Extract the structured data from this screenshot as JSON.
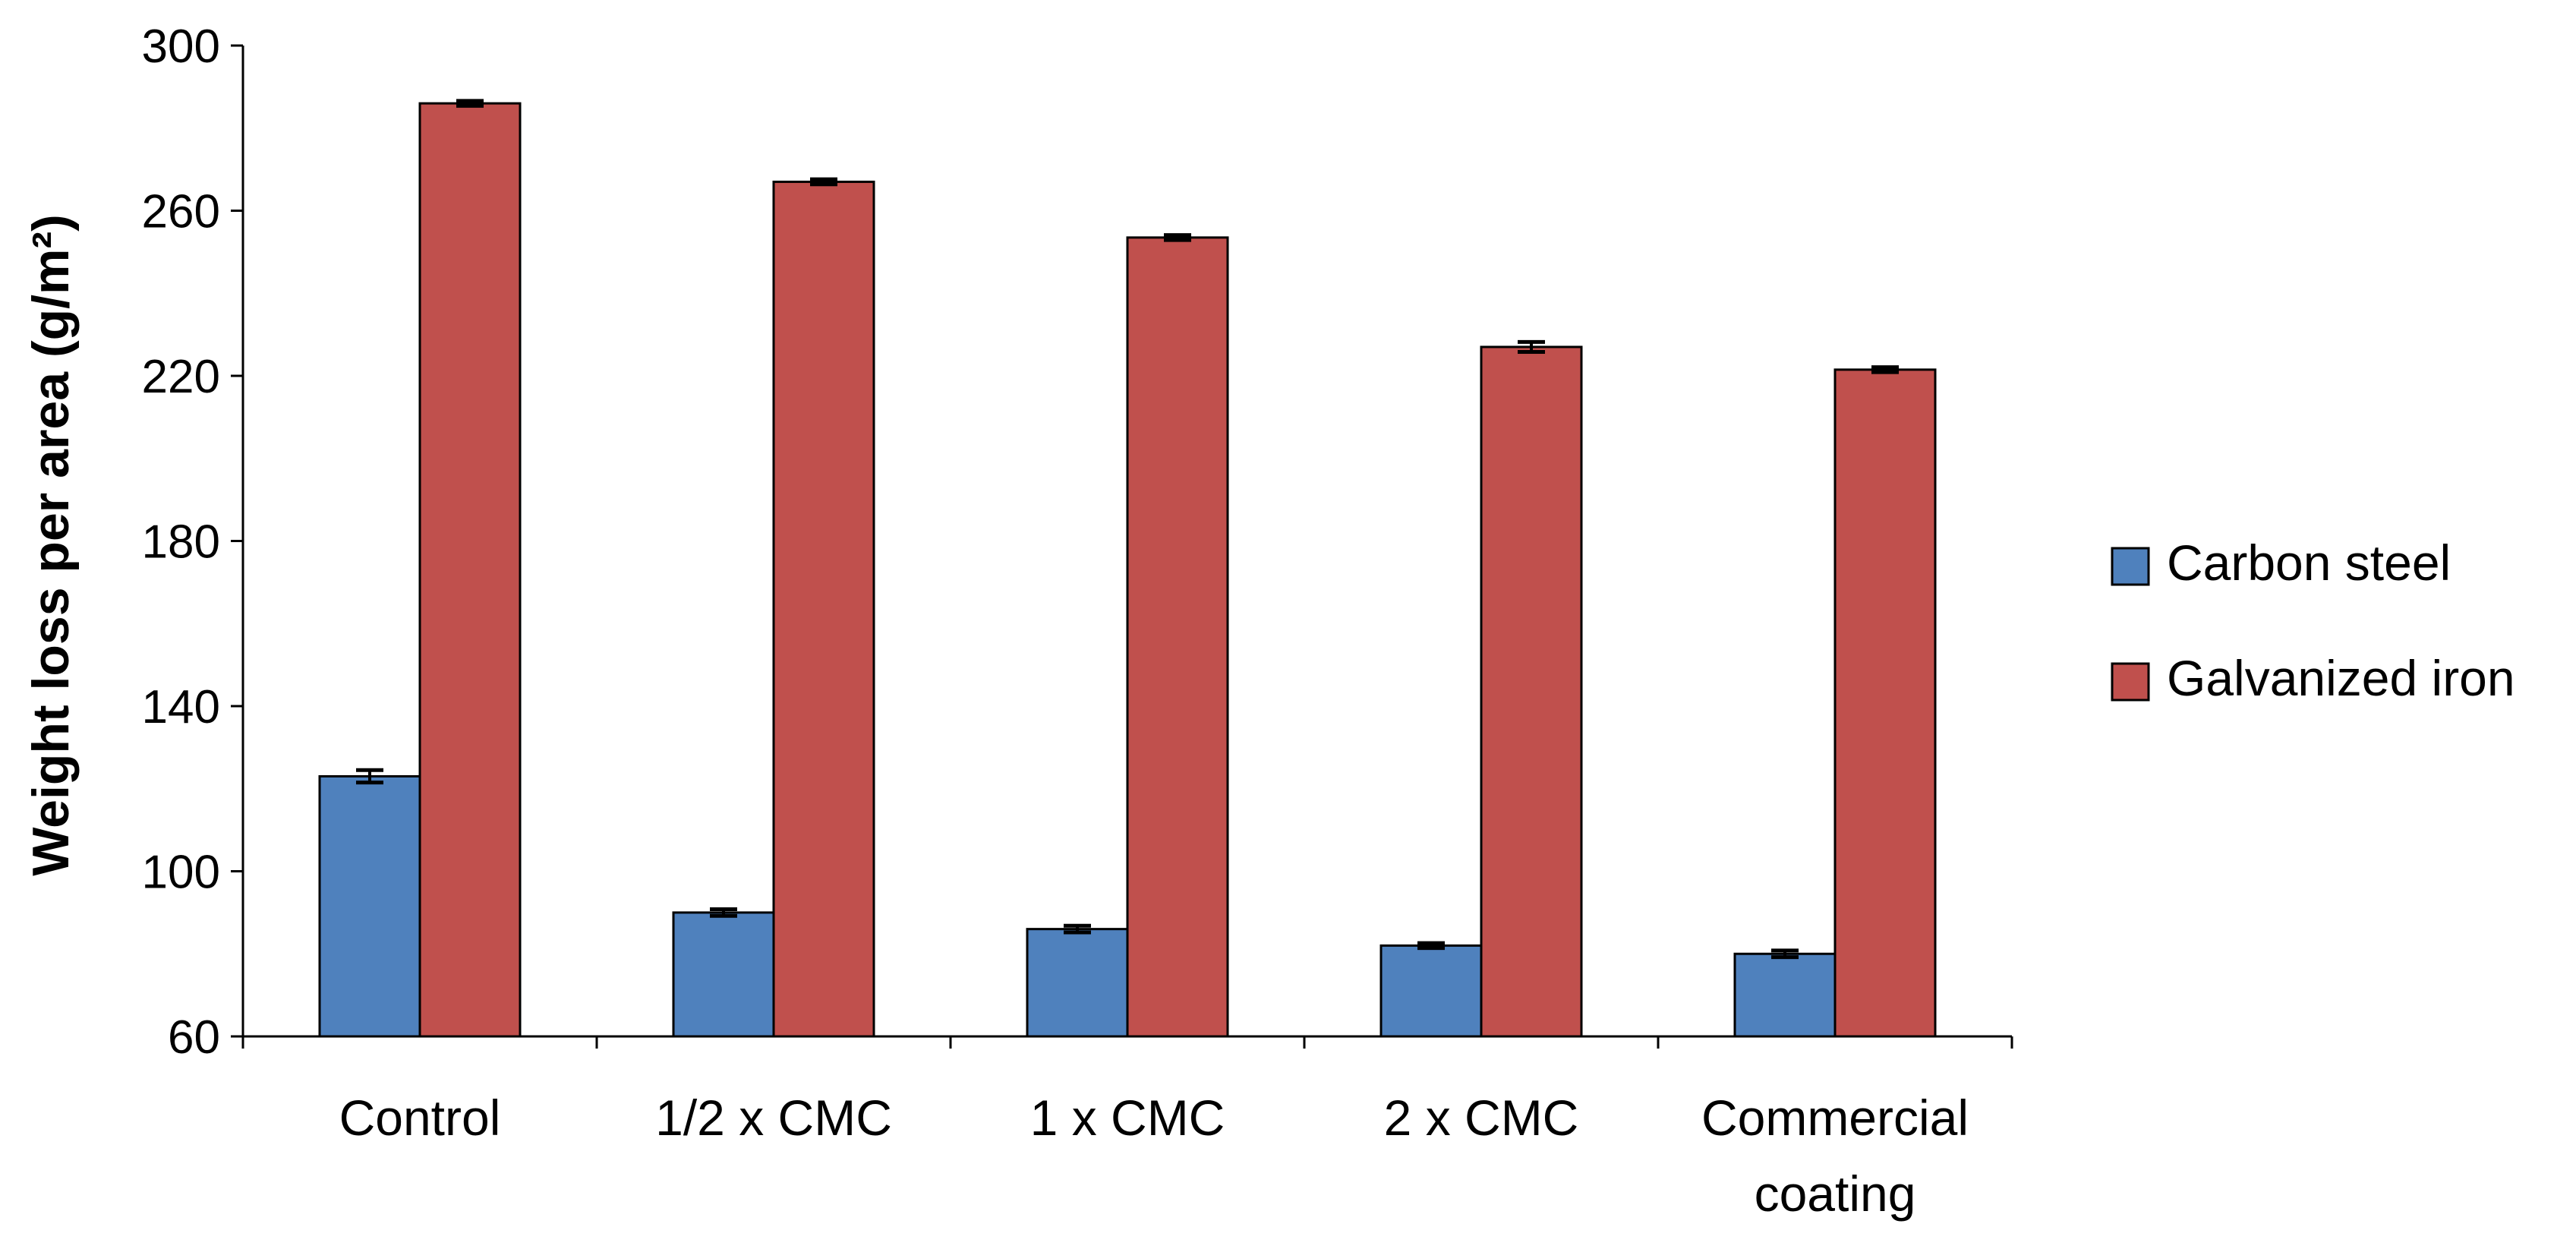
{
  "chart_data": {
    "type": "bar",
    "title": "",
    "xlabel": "",
    "ylabel": "Weight loss per area (g/m²)",
    "categories": [
      [
        "Control"
      ],
      [
        "1/2 x CMC"
      ],
      [
        "1 x CMC"
      ],
      [
        "2 x CMC"
      ],
      [
        "Commercial",
        "coating"
      ]
    ],
    "series": [
      {
        "name": "Carbon steel",
        "color": "#4f81bd",
        "values": [
          123,
          90,
          86,
          82,
          80
        ],
        "errors": [
          1.5,
          0.8,
          0.8,
          0.6,
          0.8
        ]
      },
      {
        "name": "Galvanized iron",
        "color": "#c0504d",
        "values": [
          286,
          267,
          253.5,
          227,
          221.5
        ],
        "errors": [
          0.6,
          0.6,
          0.6,
          1.2,
          0.6
        ]
      }
    ],
    "ylim": [
      60,
      300
    ],
    "yticks": [
      60,
      100,
      140,
      180,
      220,
      260,
      300
    ],
    "grid": false,
    "legend": "right"
  }
}
